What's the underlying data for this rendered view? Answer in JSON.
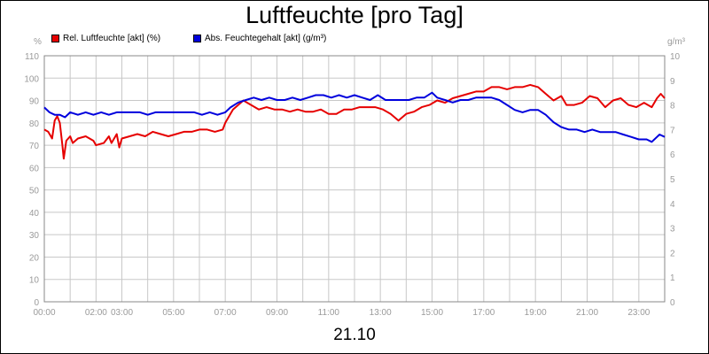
{
  "title": "Luftfeuchte [pro Tag]",
  "date_label": "21.10",
  "chart_data": {
    "type": "line",
    "title": "Luftfeuchte [pro Tag]",
    "xlabel": "21.10",
    "x_ticks": [
      "00:00",
      "02:00",
      "03:00",
      "05:00",
      "07:00",
      "09:00",
      "11:00",
      "13:00",
      "15:00",
      "17:00",
      "19:00",
      "21:00",
      "23:00"
    ],
    "x_tick_hours": [
      0,
      2,
      3,
      5,
      7,
      9,
      11,
      13,
      15,
      17,
      19,
      21,
      23
    ],
    "xlim": [
      0,
      24
    ],
    "y_left": {
      "unit": "%",
      "ylim": [
        0,
        110
      ],
      "ticks": [
        0,
        10,
        20,
        30,
        40,
        50,
        60,
        70,
        80,
        90,
        100,
        110
      ]
    },
    "y_right": {
      "unit": "g/m³",
      "ylim": [
        0,
        10
      ],
      "ticks": [
        0,
        1,
        2,
        3,
        4,
        5,
        6,
        7,
        8,
        9,
        10
      ]
    },
    "grid": true,
    "legend_position": "top-left",
    "series": [
      {
        "name": "Rel. Luftfeuchte [akt] (%)",
        "axis": "left",
        "color": "#e60000",
        "points": [
          [
            0.0,
            77
          ],
          [
            0.15,
            76
          ],
          [
            0.3,
            73
          ],
          [
            0.4,
            81
          ],
          [
            0.5,
            83
          ],
          [
            0.6,
            80
          ],
          [
            0.7,
            70
          ],
          [
            0.75,
            64
          ],
          [
            0.85,
            72
          ],
          [
            1.0,
            74
          ],
          [
            1.1,
            71
          ],
          [
            1.3,
            73
          ],
          [
            1.6,
            74
          ],
          [
            1.9,
            72
          ],
          [
            2.0,
            70
          ],
          [
            2.3,
            71
          ],
          [
            2.5,
            74
          ],
          [
            2.6,
            71
          ],
          [
            2.8,
            75
          ],
          [
            2.9,
            69
          ],
          [
            3.0,
            73
          ],
          [
            3.3,
            74
          ],
          [
            3.6,
            75
          ],
          [
            3.9,
            74
          ],
          [
            4.2,
            76
          ],
          [
            4.5,
            75
          ],
          [
            4.8,
            74
          ],
          [
            5.1,
            75
          ],
          [
            5.4,
            76
          ],
          [
            5.7,
            76
          ],
          [
            6.0,
            77
          ],
          [
            6.3,
            77
          ],
          [
            6.6,
            76
          ],
          [
            6.9,
            77
          ],
          [
            7.0,
            80
          ],
          [
            7.1,
            82
          ],
          [
            7.3,
            86
          ],
          [
            7.5,
            88
          ],
          [
            7.7,
            90
          ],
          [
            8.0,
            88
          ],
          [
            8.3,
            86
          ],
          [
            8.6,
            87
          ],
          [
            8.9,
            86
          ],
          [
            9.2,
            86
          ],
          [
            9.5,
            85
          ],
          [
            9.8,
            86
          ],
          [
            10.1,
            85
          ],
          [
            10.4,
            85
          ],
          [
            10.7,
            86
          ],
          [
            11.0,
            84
          ],
          [
            11.3,
            84
          ],
          [
            11.6,
            86
          ],
          [
            11.9,
            86
          ],
          [
            12.2,
            87
          ],
          [
            12.5,
            87
          ],
          [
            12.8,
            87
          ],
          [
            13.1,
            86
          ],
          [
            13.4,
            84
          ],
          [
            13.7,
            81
          ],
          [
            14.0,
            84
          ],
          [
            14.3,
            85
          ],
          [
            14.6,
            87
          ],
          [
            14.9,
            88
          ],
          [
            15.2,
            90
          ],
          [
            15.5,
            89
          ],
          [
            15.8,
            91
          ],
          [
            16.1,
            92
          ],
          [
            16.4,
            93
          ],
          [
            16.7,
            94
          ],
          [
            17.0,
            94
          ],
          [
            17.3,
            96
          ],
          [
            17.6,
            96
          ],
          [
            17.9,
            95
          ],
          [
            18.2,
            96
          ],
          [
            18.5,
            96
          ],
          [
            18.8,
            97
          ],
          [
            19.1,
            96
          ],
          [
            19.4,
            93
          ],
          [
            19.7,
            90
          ],
          [
            20.0,
            92
          ],
          [
            20.2,
            88
          ],
          [
            20.5,
            88
          ],
          [
            20.8,
            89
          ],
          [
            21.1,
            92
          ],
          [
            21.4,
            91
          ],
          [
            21.7,
            87
          ],
          [
            22.0,
            90
          ],
          [
            22.3,
            91
          ],
          [
            22.6,
            88
          ],
          [
            22.9,
            87
          ],
          [
            23.2,
            89
          ],
          [
            23.5,
            87
          ],
          [
            23.7,
            91
          ],
          [
            23.85,
            93
          ],
          [
            24.0,
            91
          ]
        ]
      },
      {
        "name": "Abs. Feuchtegehalt [akt] (g/m³)",
        "axis": "right",
        "color": "#0000dd",
        "points": [
          [
            0.0,
            7.9
          ],
          [
            0.2,
            7.7
          ],
          [
            0.4,
            7.6
          ],
          [
            0.6,
            7.6
          ],
          [
            0.8,
            7.5
          ],
          [
            1.0,
            7.7
          ],
          [
            1.3,
            7.6
          ],
          [
            1.6,
            7.7
          ],
          [
            1.9,
            7.6
          ],
          [
            2.2,
            7.7
          ],
          [
            2.5,
            7.6
          ],
          [
            2.8,
            7.7
          ],
          [
            3.1,
            7.7
          ],
          [
            3.4,
            7.7
          ],
          [
            3.7,
            7.7
          ],
          [
            4.0,
            7.6
          ],
          [
            4.3,
            7.7
          ],
          [
            4.6,
            7.7
          ],
          [
            4.9,
            7.7
          ],
          [
            5.2,
            7.7
          ],
          [
            5.5,
            7.7
          ],
          [
            5.8,
            7.7
          ],
          [
            6.1,
            7.6
          ],
          [
            6.4,
            7.7
          ],
          [
            6.7,
            7.6
          ],
          [
            7.0,
            7.7
          ],
          [
            7.2,
            7.9
          ],
          [
            7.5,
            8.1
          ],
          [
            7.8,
            8.2
          ],
          [
            8.1,
            8.3
          ],
          [
            8.4,
            8.2
          ],
          [
            8.7,
            8.3
          ],
          [
            9.0,
            8.2
          ],
          [
            9.3,
            8.2
          ],
          [
            9.6,
            8.3
          ],
          [
            9.9,
            8.2
          ],
          [
            10.2,
            8.3
          ],
          [
            10.5,
            8.4
          ],
          [
            10.8,
            8.4
          ],
          [
            11.1,
            8.3
          ],
          [
            11.4,
            8.4
          ],
          [
            11.7,
            8.3
          ],
          [
            12.0,
            8.4
          ],
          [
            12.3,
            8.3
          ],
          [
            12.6,
            8.2
          ],
          [
            12.9,
            8.4
          ],
          [
            13.2,
            8.2
          ],
          [
            13.5,
            8.2
          ],
          [
            13.8,
            8.2
          ],
          [
            14.1,
            8.2
          ],
          [
            14.4,
            8.3
          ],
          [
            14.7,
            8.3
          ],
          [
            15.0,
            8.5
          ],
          [
            15.2,
            8.3
          ],
          [
            15.5,
            8.2
          ],
          [
            15.8,
            8.1
          ],
          [
            16.1,
            8.2
          ],
          [
            16.4,
            8.2
          ],
          [
            16.7,
            8.3
          ],
          [
            17.0,
            8.3
          ],
          [
            17.3,
            8.3
          ],
          [
            17.6,
            8.2
          ],
          [
            17.9,
            8.0
          ],
          [
            18.2,
            7.8
          ],
          [
            18.5,
            7.7
          ],
          [
            18.8,
            7.8
          ],
          [
            19.1,
            7.8
          ],
          [
            19.4,
            7.6
          ],
          [
            19.7,
            7.3
          ],
          [
            20.0,
            7.1
          ],
          [
            20.3,
            7.0
          ],
          [
            20.6,
            7.0
          ],
          [
            20.9,
            6.9
          ],
          [
            21.2,
            7.0
          ],
          [
            21.5,
            6.9
          ],
          [
            21.8,
            6.9
          ],
          [
            22.1,
            6.9
          ],
          [
            22.4,
            6.8
          ],
          [
            22.7,
            6.7
          ],
          [
            23.0,
            6.6
          ],
          [
            23.3,
            6.6
          ],
          [
            23.5,
            6.5
          ],
          [
            23.8,
            6.8
          ],
          [
            24.0,
            6.7
          ]
        ]
      }
    ]
  }
}
